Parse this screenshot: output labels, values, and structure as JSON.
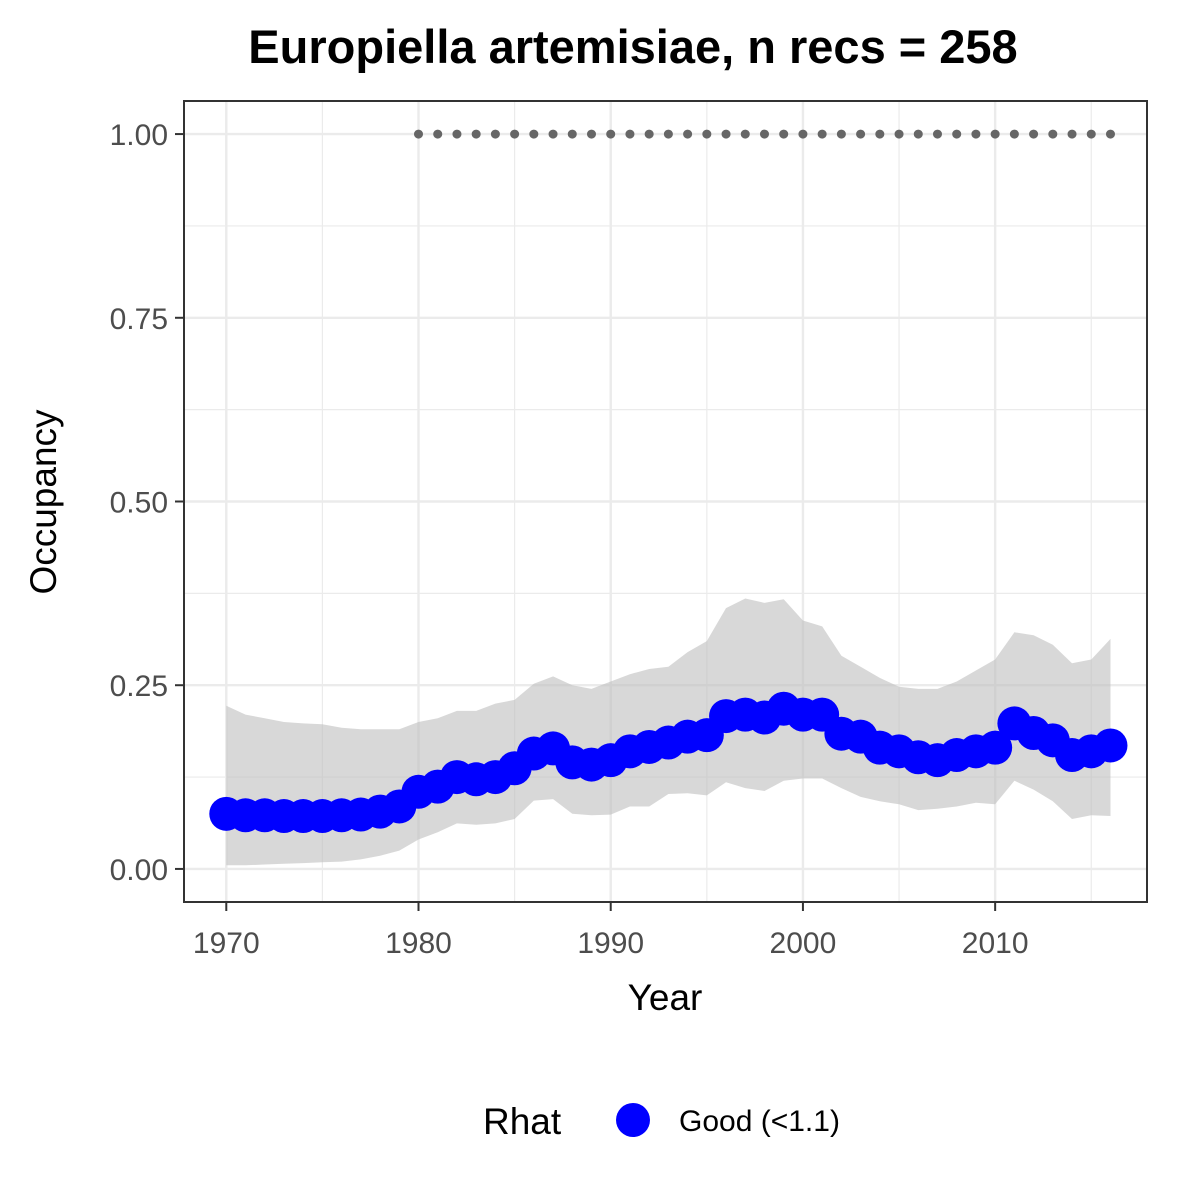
{
  "chart_data": {
    "type": "line",
    "title": "Europiella artemisiae, n recs = 258",
    "xlabel": "Year",
    "ylabel": "Occupancy",
    "xlim": [
      1967.8,
      2017.9
    ],
    "ylim": [
      -0.045,
      1.045
    ],
    "x_ticks": [
      1970,
      1980,
      1990,
      2000,
      2010
    ],
    "x_tick_labels": [
      "1970",
      "1980",
      "1990",
      "2000",
      "2010"
    ],
    "y_ticks": [
      0,
      0.25,
      0.5,
      0.75,
      1.0
    ],
    "y_tick_labels": [
      "0.00",
      "0.25",
      "0.50",
      "0.75",
      "1.00"
    ],
    "grid": true,
    "legend_position": "bottom",
    "legend": {
      "title": "Rhat",
      "entries": [
        {
          "label": "Good (<1.1)",
          "color": "#0000FF"
        }
      ]
    },
    "colors": {
      "points": "#0000FF",
      "ribbon": "#BEBEBE",
      "record_dots": "#666666",
      "panel_border": "#333333",
      "grid": "#EBEBEB",
      "tick_text": "#4D4D4D"
    },
    "x": [
      1970,
      1971,
      1972,
      1973,
      1974,
      1975,
      1976,
      1977,
      1978,
      1979,
      1980,
      1981,
      1982,
      1983,
      1984,
      1985,
      1986,
      1987,
      1988,
      1989,
      1990,
      1991,
      1992,
      1993,
      1994,
      1995,
      1996,
      1997,
      1998,
      1999,
      2000,
      2001,
      2002,
      2003,
      2004,
      2005,
      2006,
      2007,
      2008,
      2009,
      2010,
      2011,
      2012,
      2013,
      2014,
      2015,
      2016
    ],
    "series": [
      {
        "name": "Good (<1.1)",
        "values": [
          0.075,
          0.073,
          0.073,
          0.072,
          0.072,
          0.072,
          0.073,
          0.074,
          0.078,
          0.085,
          0.105,
          0.112,
          0.125,
          0.122,
          0.125,
          0.137,
          0.157,
          0.164,
          0.145,
          0.142,
          0.148,
          0.16,
          0.166,
          0.172,
          0.18,
          0.182,
          0.208,
          0.21,
          0.206,
          0.218,
          0.21,
          0.21,
          0.184,
          0.18,
          0.165,
          0.16,
          0.152,
          0.148,
          0.155,
          0.16,
          0.165,
          0.198,
          0.185,
          0.175,
          0.155,
          0.16,
          0.168
        ],
        "lower": [
          0.005,
          0.005,
          0.006,
          0.007,
          0.008,
          0.009,
          0.01,
          0.013,
          0.018,
          0.025,
          0.04,
          0.05,
          0.062,
          0.06,
          0.062,
          0.068,
          0.093,
          0.095,
          0.075,
          0.073,
          0.074,
          0.085,
          0.085,
          0.102,
          0.103,
          0.1,
          0.118,
          0.11,
          0.106,
          0.12,
          0.123,
          0.123,
          0.11,
          0.098,
          0.092,
          0.088,
          0.08,
          0.082,
          0.085,
          0.09,
          0.088,
          0.12,
          0.108,
          0.092,
          0.068,
          0.073,
          0.072
        ],
        "upper": [
          0.222,
          0.21,
          0.205,
          0.2,
          0.198,
          0.197,
          0.192,
          0.19,
          0.19,
          0.19,
          0.2,
          0.205,
          0.215,
          0.215,
          0.225,
          0.23,
          0.252,
          0.262,
          0.25,
          0.245,
          0.255,
          0.265,
          0.272,
          0.275,
          0.295,
          0.31,
          0.355,
          0.368,
          0.362,
          0.367,
          0.338,
          0.33,
          0.29,
          0.275,
          0.26,
          0.248,
          0.245,
          0.245,
          0.255,
          0.27,
          0.285,
          0.322,
          0.318,
          0.305,
          0.28,
          0.285,
          0.313
        ]
      }
    ],
    "records": {
      "x": [
        1980,
        1981,
        1982,
        1983,
        1984,
        1985,
        1986,
        1987,
        1988,
        1989,
        1990,
        1991,
        1992,
        1993,
        1994,
        1995,
        1996,
        1997,
        1998,
        1999,
        2000,
        2001,
        2002,
        2003,
        2004,
        2005,
        2006,
        2007,
        2008,
        2009,
        2010,
        2011,
        2012,
        2013,
        2014,
        2015,
        2016
      ],
      "y": 1.0
    }
  }
}
